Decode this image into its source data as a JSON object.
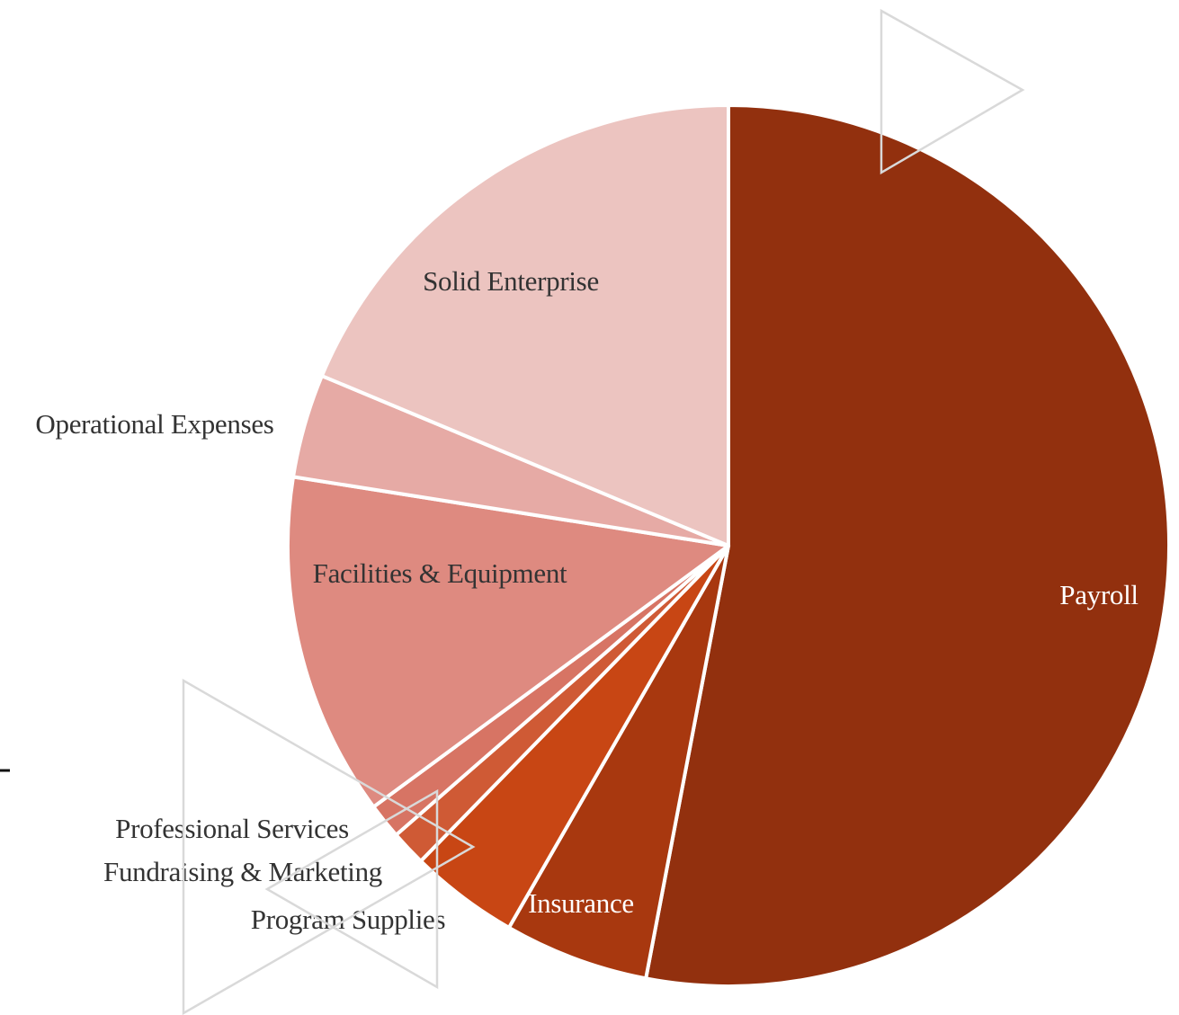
{
  "chart_data": {
    "type": "pie",
    "title": "",
    "start_angle_deg": 0,
    "direction": "clockwise",
    "slices": [
      {
        "label": "Payroll",
        "value": 53.0,
        "color": "#92300e",
        "label_color": "#ffffff"
      },
      {
        "label": "Insurance",
        "value": 5.3,
        "color": "#a8380f",
        "label_color": "#ffffff"
      },
      {
        "label": "Program Supplies",
        "value": 4.0,
        "color": "#c84614",
        "label_color": "#333333"
      },
      {
        "label": "Fundraising & Marketing",
        "value": 1.3,
        "color": "#cf5a35",
        "label_color": "#333333"
      },
      {
        "label": "Professional Services",
        "value": 1.3,
        "color": "#d77464",
        "label_color": "#333333"
      },
      {
        "label": "Facilities & Equipment",
        "value": 12.6,
        "color": "#de8a80",
        "label_color": "#333333"
      },
      {
        "label": "Operational Expenses",
        "value": 3.8,
        "color": "#e6aaa5",
        "label_color": "#333333"
      },
      {
        "label": "Solid Enterprise",
        "value": 18.7,
        "color": "#ecc4c0",
        "label_color": "#333333"
      }
    ]
  }
}
